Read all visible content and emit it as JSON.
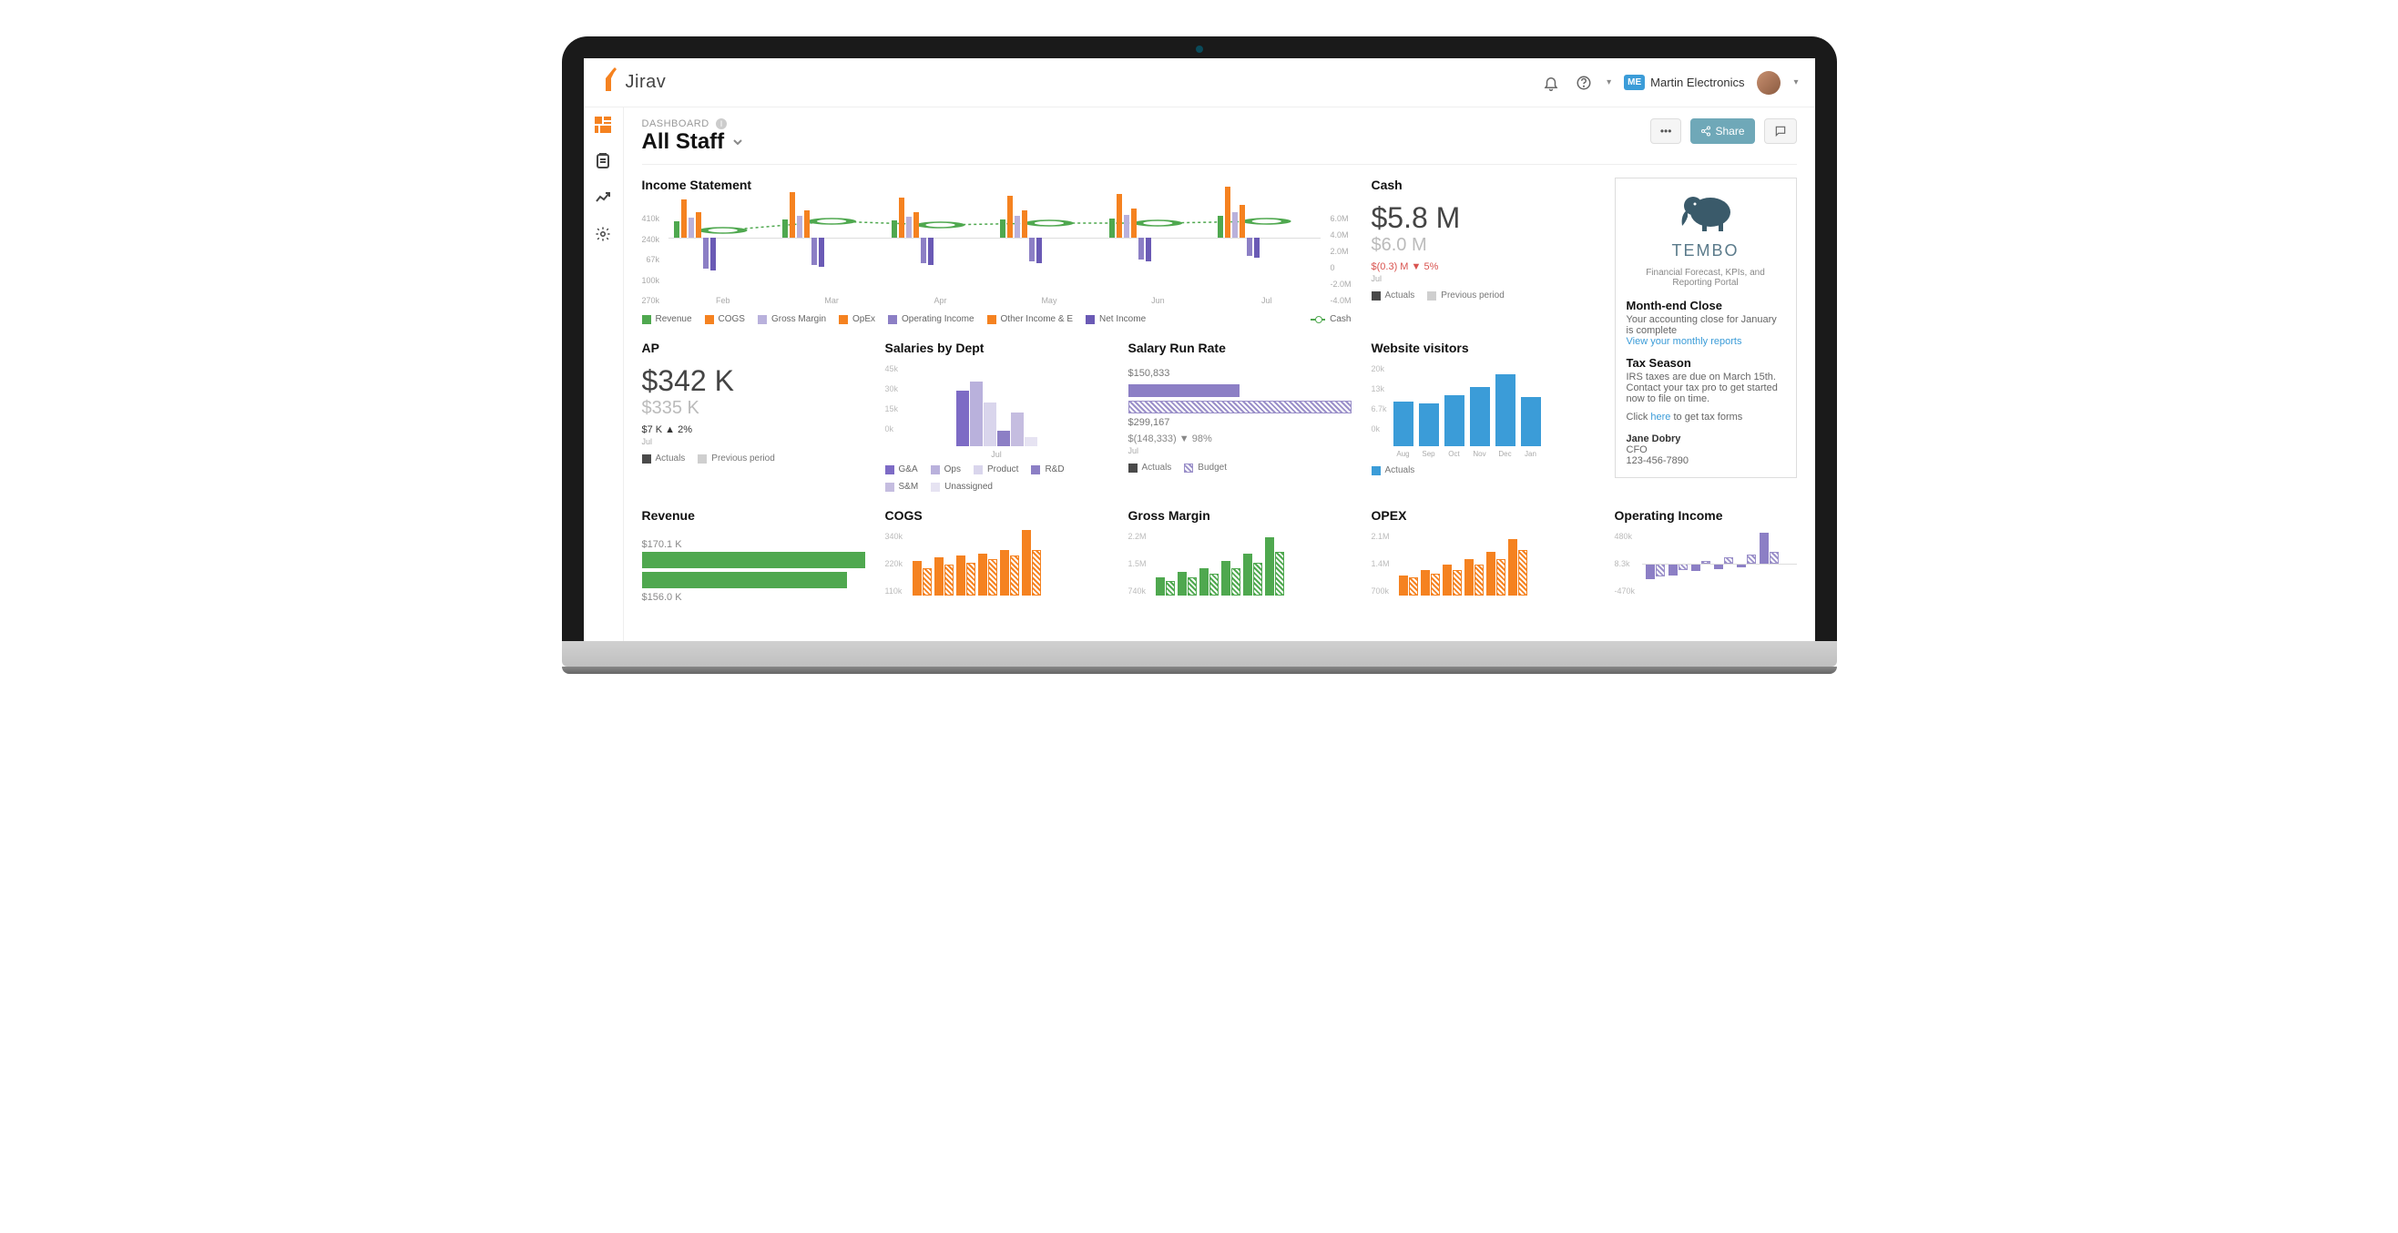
{
  "app": {
    "logo_text": "Jirav"
  },
  "top": {
    "company_badge": "ME",
    "company_name": "Martin Electronics"
  },
  "crumb": "DASHBOARD",
  "page_title": "All Staff",
  "actions": {
    "share": "Share"
  },
  "income": {
    "title": "Income Statement",
    "left_axis": [
      "410k",
      "240k",
      "67k",
      "100k",
      "270k"
    ],
    "right_axis": [
      "6.0M",
      "4.0M",
      "2.0M",
      "0",
      "-2.0M",
      "-4.0M"
    ],
    "months": [
      "Feb",
      "Mar",
      "Apr",
      "May",
      "Jun",
      "Jul"
    ],
    "colors": {
      "revenue": "#4fa84f",
      "cogs": "#f58220",
      "gross_margin": "#b9b1dc",
      "opex": "#f58220",
      "operating_income": "#8c7fc5",
      "other": "#f58220",
      "net_income": "#6a5ab5",
      "cash": "#4fa84f"
    },
    "legend": [
      "Revenue",
      "COGS",
      "Gross Margin",
      "OpEx",
      "Operating Income",
      "Other Income & E",
      "Net Income"
    ],
    "cash_legend": "Cash",
    "series": [
      {
        "rev": 18,
        "cogs": 42,
        "gm": 22,
        "opex": 28,
        "oi_neg": 34,
        "ni_neg": 36
      },
      {
        "rev": 20,
        "cogs": 50,
        "gm": 24,
        "opex": 30,
        "oi_neg": 30,
        "ni_neg": 32
      },
      {
        "rev": 19,
        "cogs": 44,
        "gm": 23,
        "opex": 28,
        "oi_neg": 28,
        "ni_neg": 30
      },
      {
        "rev": 20,
        "cogs": 46,
        "gm": 24,
        "opex": 30,
        "oi_neg": 26,
        "ni_neg": 28
      },
      {
        "rev": 21,
        "cogs": 48,
        "gm": 25,
        "opex": 32,
        "oi_neg": 24,
        "ni_neg": 26
      },
      {
        "rev": 24,
        "cogs": 56,
        "gm": 28,
        "opex": 36,
        "oi_neg": 20,
        "ni_neg": 22
      }
    ],
    "cash_points": [
      32,
      22,
      26,
      24,
      24,
      22
    ]
  },
  "cash": {
    "title": "Cash",
    "value": "$5.8 M",
    "prev": "$6.0 M",
    "delta": "$(0.3) M  ▼  5%",
    "period": "Jul",
    "legend_a": "Actuals",
    "legend_b": "Previous period",
    "color_a": "#4a4a4a",
    "color_b": "#cfcfcf"
  },
  "ap": {
    "title": "AP",
    "value": "$342 K",
    "prev": "$335 K",
    "delta": "$7 K  ▲  2%",
    "period": "Jul",
    "legend_a": "Actuals",
    "legend_b": "Previous period"
  },
  "salaries": {
    "title": "Salaries by Dept",
    "yaxis": [
      "45k",
      "30k",
      "15k",
      "0k"
    ],
    "xlabel": "Jul",
    "legend": [
      "G&A",
      "Ops",
      "Product",
      "R&D",
      "S&M",
      "Unassigned"
    ],
    "colors": [
      "#7d6bc5",
      "#b9b1dc",
      "#d9d5ec",
      "#8c7fc5",
      "#c5bde0",
      "#e6e3f2"
    ],
    "values": [
      36,
      42,
      28,
      10,
      22,
      6
    ]
  },
  "srr": {
    "title": "Salary Run Rate",
    "actual_label": "$150,833",
    "budget_label": "$299,167",
    "delta": "$(148,333) ▼  98%",
    "period": "Jul",
    "legend_a": "Actuals",
    "legend_b": "Budget",
    "actual_pct": 50,
    "budget_pct": 100,
    "actual_color": "#8c7fc5"
  },
  "website": {
    "title": "Website visitors",
    "yaxis": [
      "20k",
      "13k",
      "6.7k",
      "0k"
    ],
    "months": [
      "Aug",
      "Sep",
      "Oct",
      "Nov",
      "Dec",
      "Jan"
    ],
    "values": [
      55,
      52,
      62,
      72,
      88,
      60
    ],
    "color": "#3b9cd8",
    "legend": "Actuals"
  },
  "side": {
    "brand": "TEMBO",
    "tagline": "Financial Forecast, KPIs, and Reporting Portal",
    "h1": "Month-end Close",
    "p1a": "Your accounting close for January is complete",
    "link1": "View your monthly reports",
    "h2": "Tax Season",
    "p2": "IRS taxes are due on March 15th. Contact your tax pro to get started now to file on time.",
    "p3a": "Click ",
    "p3link": "here",
    "p3b": " to get tax forms",
    "name": "Jane Dobry",
    "role": "CFO",
    "phone": "123-456-7890"
  },
  "bottom": {
    "revenue": {
      "title": "Revenue",
      "top_label": "$170.1 K",
      "bot_label": "$156.0 K",
      "top_pct": 100,
      "bot_pct": 92,
      "color": "#4fa84f"
    },
    "cogs": {
      "title": "COGS",
      "yaxis": [
        "340k",
        "220k",
        "110k"
      ],
      "color": "#f58220",
      "pairs": [
        [
          38,
          30
        ],
        [
          42,
          34
        ],
        [
          44,
          36
        ],
        [
          46,
          40
        ],
        [
          50,
          44
        ],
        [
          72,
          50
        ]
      ]
    },
    "gm": {
      "title": "Gross Margin",
      "yaxis": [
        "2.2M",
        "1.5M",
        "740k"
      ],
      "color": "#4fa84f",
      "pairs": [
        [
          20,
          16
        ],
        [
          26,
          20
        ],
        [
          30,
          24
        ],
        [
          38,
          30
        ],
        [
          46,
          36
        ],
        [
          64,
          48
        ]
      ]
    },
    "opex": {
      "title": "OPEX",
      "yaxis": [
        "2.1M",
        "1.4M",
        "700k"
      ],
      "color": "#f58220",
      "pairs": [
        [
          22,
          20
        ],
        [
          28,
          24
        ],
        [
          34,
          28
        ],
        [
          40,
          34
        ],
        [
          48,
          40
        ],
        [
          62,
          50
        ]
      ]
    },
    "oi": {
      "title": "Operating Income",
      "yaxis": [
        "480k",
        "8.3k",
        "-470k"
      ],
      "color": "#8c7fc5",
      "pairs": [
        [
          -24,
          -20
        ],
        [
          -18,
          -10
        ],
        [
          -12,
          4
        ],
        [
          -8,
          10
        ],
        [
          -6,
          14
        ],
        [
          48,
          18
        ]
      ]
    }
  }
}
